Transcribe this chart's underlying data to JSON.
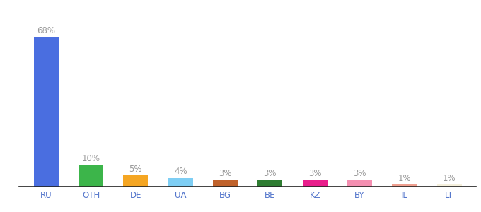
{
  "categories": [
    "RU",
    "OTH",
    "DE",
    "UA",
    "BG",
    "BE",
    "KZ",
    "BY",
    "IL",
    "LT"
  ],
  "values": [
    68,
    10,
    5,
    4,
    3,
    3,
    3,
    3,
    1,
    1
  ],
  "labels": [
    "68%",
    "10%",
    "5%",
    "4%",
    "3%",
    "3%",
    "3%",
    "3%",
    "1%",
    "1%"
  ],
  "bar_colors": [
    "#4a6ee0",
    "#3cb54a",
    "#f5a623",
    "#7ecef4",
    "#c0622b",
    "#2e7d32",
    "#e91e8c",
    "#f48fb1",
    "#f0a090",
    "#f5f0dc"
  ],
  "background_color": "#ffffff",
  "ylim": [
    0,
    80
  ],
  "label_fontsize": 8.5,
  "tick_fontsize": 8.5,
  "label_color": "#999999",
  "tick_color": "#5577cc",
  "bar_width": 0.55
}
